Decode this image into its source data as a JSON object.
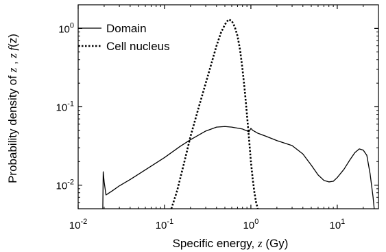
{
  "chart_data": {
    "type": "line",
    "xlabel_prefix": "Specific energy, ",
    "xlabel_var": "z",
    "xlabel_suffix": " (Gy)",
    "ylabel_prefix": "Probability density of ",
    "ylabel_var1": "z",
    "ylabel_sep": " , ",
    "ylabel_var2": "z f",
    "ylabel_var3": "(z)",
    "xscale": "log",
    "yscale": "log",
    "xlim": [
      0.01,
      30
    ],
    "ylim": [
      0.005,
      2
    ],
    "x_ticks": [
      {
        "value": 0.01,
        "base": "10",
        "exp": "-2"
      },
      {
        "value": 0.1,
        "base": "10",
        "exp": "-1"
      },
      {
        "value": 1,
        "base": "10",
        "exp": "0"
      },
      {
        "value": 10,
        "base": "10",
        "exp": "1"
      }
    ],
    "y_ticks": [
      {
        "value": 0.01,
        "base": "10",
        "exp": "-2"
      },
      {
        "value": 0.1,
        "base": "10",
        "exp": "-1"
      },
      {
        "value": 1,
        "base": "10",
        "exp": "0"
      }
    ],
    "legend_position": "top-left",
    "series": [
      {
        "name": "Domain",
        "style": "solid",
        "x": [
          0.019,
          0.0195,
          0.02,
          0.021,
          0.025,
          0.03,
          0.04,
          0.05,
          0.07,
          0.1,
          0.15,
          0.2,
          0.3,
          0.4,
          0.5,
          0.6,
          0.8,
          0.95,
          1.0,
          1.05,
          1.2,
          1.5,
          2,
          3,
          4,
          5,
          6,
          7,
          8,
          9,
          10,
          12,
          14,
          16,
          18,
          20,
          22,
          24,
          26,
          28
        ],
        "y": [
          0.001,
          0.0148,
          0.011,
          0.0075,
          0.0085,
          0.0098,
          0.0118,
          0.0138,
          0.0175,
          0.0225,
          0.031,
          0.038,
          0.049,
          0.055,
          0.056,
          0.055,
          0.052,
          0.048,
          0.053,
          0.05,
          0.046,
          0.042,
          0.037,
          0.032,
          0.025,
          0.018,
          0.0135,
          0.0115,
          0.011,
          0.0112,
          0.0125,
          0.016,
          0.021,
          0.026,
          0.029,
          0.028,
          0.024,
          0.014,
          0.007,
          0.003
        ]
      },
      {
        "name": "Cell nucleus",
        "style": "dotted",
        "x": [
          0.12,
          0.14,
          0.17,
          0.2,
          0.25,
          0.3,
          0.35,
          0.4,
          0.45,
          0.5,
          0.55,
          0.6,
          0.65,
          0.7,
          0.75,
          0.8,
          0.85,
          0.9,
          0.95,
          1.0,
          1.05,
          1.1,
          1.15,
          1.2
        ],
        "y": [
          0.005,
          0.0085,
          0.02,
          0.042,
          0.1,
          0.2,
          0.36,
          0.6,
          0.88,
          1.12,
          1.3,
          1.25,
          1.05,
          0.8,
          0.53,
          0.3,
          0.16,
          0.08,
          0.04,
          0.02,
          0.012,
          0.008,
          0.006,
          0.005
        ]
      }
    ]
  }
}
